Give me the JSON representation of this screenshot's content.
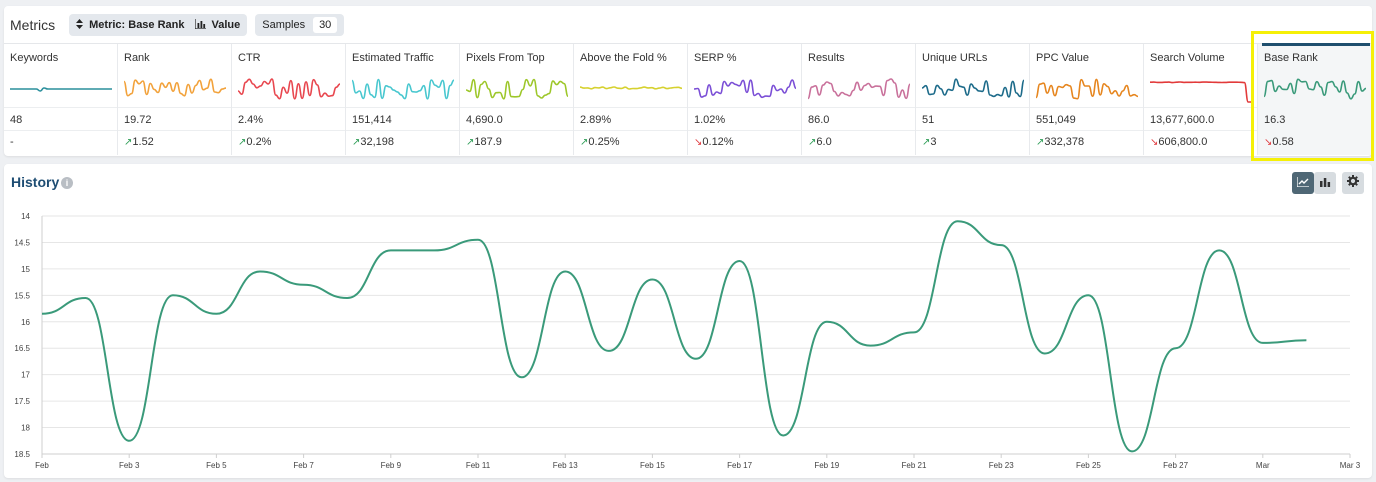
{
  "metrics": {
    "title": "Metrics",
    "metric_pill": {
      "prefix": "Metric:",
      "value": "Base Rank",
      "mode": "Value"
    },
    "samples_label": "Samples",
    "samples_value": "30",
    "columns": [
      {
        "name": "Keywords",
        "value": "48",
        "delta": "-",
        "dir": "none",
        "color": "#2a8f9c"
      },
      {
        "name": "Rank",
        "value": "19.72",
        "delta": "1.52",
        "dir": "up",
        "color": "#f2a23b"
      },
      {
        "name": "CTR",
        "value": "2.4%",
        "delta": "0.2%",
        "dir": "up",
        "color": "#e8474f"
      },
      {
        "name": "Estimated Traffic",
        "value": "151,414",
        "delta": "32,198",
        "dir": "up",
        "color": "#48c7cf"
      },
      {
        "name": "Pixels From Top",
        "value": "4,690.0",
        "delta": "187.9",
        "dir": "up",
        "color": "#9dc72a"
      },
      {
        "name": "Above the Fold %",
        "value": "2.89%",
        "delta": "0.25%",
        "dir": "up",
        "color": "#d6d12f"
      },
      {
        "name": "SERP %",
        "value": "1.02%",
        "delta": "0.12%",
        "dir": "down",
        "color": "#7b4fd6"
      },
      {
        "name": "Results",
        "value": "86.0",
        "delta": "6.0",
        "dir": "up",
        "color": "#c9719b"
      },
      {
        "name": "Unique URLs",
        "value": "51",
        "delta": "3",
        "dir": "up",
        "color": "#1d6b8a"
      },
      {
        "name": "PPC Value",
        "value": "551,049",
        "delta": "332,378",
        "dir": "up",
        "color": "#e6861f"
      },
      {
        "name": "Search Volume",
        "value": "13,677,600.0",
        "delta": "606,800.0",
        "dir": "down",
        "color": "#e23a3a"
      },
      {
        "name": "Base Rank",
        "value": "16.3",
        "delta": "0.58",
        "dir": "down",
        "color": "#3a9a7a"
      }
    ]
  },
  "history": {
    "title": "History",
    "info_icon": "info-icon",
    "buttons": [
      "line-chart-icon",
      "bar-chart-icon",
      "gear-icon"
    ]
  },
  "chart_data": {
    "type": "line",
    "title": "",
    "xlabel": "",
    "ylabel": "",
    "y_reversed": true,
    "ylim": [
      14,
      18.5
    ],
    "y_ticks": [
      "14",
      "14.5",
      "15",
      "15.5",
      "16",
      "16.5",
      "17",
      "17.5",
      "18",
      "18.5"
    ],
    "x_ticks": [
      "Feb",
      "Feb 3",
      "Feb 5",
      "Feb 7",
      "Feb 9",
      "Feb 11",
      "Feb 13",
      "Feb 15",
      "Feb 17",
      "Feb 19",
      "Feb 21",
      "Feb 23",
      "Feb 25",
      "Feb 27",
      "Mar",
      "Mar 3"
    ],
    "series": [
      {
        "color": "#3a9a7a",
        "x": [
          "Feb 1",
          "Feb 2",
          "Feb 3",
          "Feb 4",
          "Feb 5",
          "Feb 6",
          "Feb 7",
          "Feb 8",
          "Feb 9",
          "Feb 10",
          "Feb 11",
          "Feb 12",
          "Feb 13",
          "Feb 14",
          "Feb 15",
          "Feb 16",
          "Feb 17",
          "Feb 18",
          "Feb 19",
          "Feb 20",
          "Feb 21",
          "Feb 22",
          "Feb 23",
          "Feb 24",
          "Feb 25",
          "Feb 26",
          "Feb 27",
          "Feb 28",
          "Mar 1",
          "Mar 2"
        ],
        "values": [
          15.85,
          15.55,
          18.25,
          15.5,
          15.85,
          15.05,
          15.3,
          15.55,
          14.65,
          14.65,
          14.45,
          17.05,
          15.05,
          16.55,
          15.2,
          16.7,
          14.85,
          18.15,
          16.0,
          16.45,
          16.2,
          14.1,
          14.55,
          16.6,
          15.5,
          18.45,
          16.5,
          14.65,
          16.4,
          16.35
        ]
      }
    ]
  }
}
